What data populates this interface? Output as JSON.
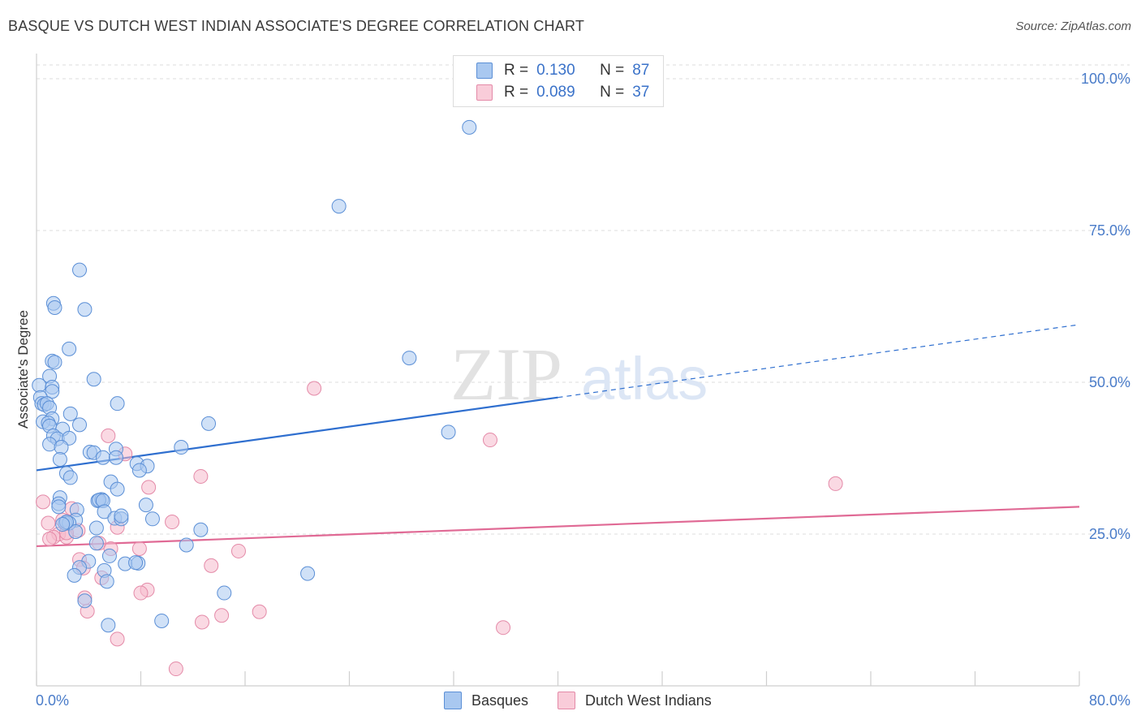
{
  "title": "BASQUE VS DUTCH WEST INDIAN ASSOCIATE'S DEGREE CORRELATION CHART",
  "source": "Source: ZipAtlas.com",
  "legend": {
    "row1": {
      "r_label": "R =",
      "r_value": "0.130",
      "n_label": "N =",
      "n_value": "87"
    },
    "row2": {
      "r_label": "R =",
      "r_value": "0.089",
      "n_label": "N =",
      "n_value": "37"
    }
  },
  "bottom_legend": {
    "series1": "Basques",
    "series2": "Dutch West Indians"
  },
  "colors": {
    "blue_fill": "#a9c8f0",
    "blue_stroke": "#5b8fd6",
    "blue_line": "#2f6fcf",
    "pink_fill": "#f5b9cc",
    "pink_stroke": "#e48aa8",
    "pink_line": "#e06a95",
    "grid": "#dddddd",
    "tick_text": "#4a7cc9"
  },
  "chart_data": {
    "type": "scatter",
    "title": "BASQUE VS DUTCH WEST INDIAN ASSOCIATE'S DEGREE CORRELATION CHART",
    "xlabel": "",
    "ylabel": "Associate's Degree",
    "xlim": [
      0,
      80
    ],
    "ylim": [
      0,
      100
    ],
    "x_tick_labels": [
      "0.0%",
      "80.0%"
    ],
    "y_tick_labels": [
      "25.0%",
      "50.0%",
      "75.0%",
      "100.0%"
    ],
    "y_ticks": [
      25,
      50,
      75,
      100
    ],
    "grid": "horizontal dashed",
    "legend_position": "top-center",
    "watermark": "ZIPatlas",
    "series": [
      {
        "name": "Basques",
        "r": 0.13,
        "n": 87,
        "trend": {
          "x0": 0,
          "y0": 35.5,
          "x1": 40,
          "y1": 47.5,
          "dashed_to_x": 80,
          "dashed_to_y": 59.5
        },
        "points": [
          [
            33.2,
            92.0
          ],
          [
            23.2,
            79.0
          ],
          [
            3.3,
            68.5
          ],
          [
            1.3,
            63.0
          ],
          [
            1.4,
            62.3
          ],
          [
            3.7,
            62.0
          ],
          [
            2.5,
            55.5
          ],
          [
            28.6,
            54.0
          ],
          [
            1.2,
            53.5
          ],
          [
            1.4,
            53.3
          ],
          [
            1.0,
            51.0
          ],
          [
            4.4,
            50.5
          ],
          [
            0.2,
            49.5
          ],
          [
            1.2,
            49.2
          ],
          [
            1.2,
            48.5
          ],
          [
            0.3,
            47.5
          ],
          [
            0.4,
            46.5
          ],
          [
            0.6,
            46.3
          ],
          [
            0.8,
            46.5
          ],
          [
            6.2,
            46.5
          ],
          [
            1.0,
            45.8
          ],
          [
            2.6,
            44.8
          ],
          [
            1.2,
            44.0
          ],
          [
            0.5,
            43.5
          ],
          [
            0.9,
            43.3
          ],
          [
            1.0,
            42.8
          ],
          [
            3.3,
            43.0
          ],
          [
            13.2,
            43.2
          ],
          [
            2.0,
            42.3
          ],
          [
            1.3,
            41.2
          ],
          [
            31.6,
            41.8
          ],
          [
            1.6,
            40.7
          ],
          [
            2.5,
            40.8
          ],
          [
            1.0,
            39.8
          ],
          [
            1.9,
            39.3
          ],
          [
            11.1,
            39.3
          ],
          [
            6.1,
            39.0
          ],
          [
            4.1,
            38.5
          ],
          [
            4.4,
            38.4
          ],
          [
            5.1,
            37.6
          ],
          [
            6.1,
            37.6
          ],
          [
            1.8,
            37.3
          ],
          [
            7.7,
            36.6
          ],
          [
            8.5,
            36.2
          ],
          [
            7.9,
            35.5
          ],
          [
            2.3,
            35.0
          ],
          [
            2.6,
            34.3
          ],
          [
            5.7,
            33.6
          ],
          [
            6.2,
            32.4
          ],
          [
            1.8,
            31.0
          ],
          [
            1.7,
            30.0
          ],
          [
            4.7,
            30.5
          ],
          [
            5.0,
            30.7
          ],
          [
            4.8,
            30.6
          ],
          [
            5.1,
            30.5
          ],
          [
            8.4,
            29.8
          ],
          [
            3.1,
            29.0
          ],
          [
            1.7,
            29.5
          ],
          [
            5.2,
            28.7
          ],
          [
            6.0,
            27.6
          ],
          [
            6.5,
            27.5
          ],
          [
            8.9,
            27.5
          ],
          [
            3.0,
            27.3
          ],
          [
            2.2,
            26.8
          ],
          [
            2.5,
            26.8
          ],
          [
            4.6,
            26.0
          ],
          [
            12.6,
            25.7
          ],
          [
            3.0,
            25.4
          ],
          [
            4.6,
            23.5
          ],
          [
            11.5,
            23.2
          ],
          [
            5.6,
            21.4
          ],
          [
            4.0,
            20.5
          ],
          [
            6.8,
            20.1
          ],
          [
            7.8,
            20.2
          ],
          [
            3.3,
            19.5
          ],
          [
            5.2,
            19.0
          ],
          [
            20.8,
            18.5
          ],
          [
            2.9,
            18.2
          ],
          [
            5.4,
            17.2
          ],
          [
            14.4,
            15.3
          ],
          [
            3.7,
            14.0
          ],
          [
            9.6,
            10.7
          ],
          [
            5.5,
            10.0
          ],
          [
            2.3,
            27.0
          ],
          [
            7.6,
            20.3
          ],
          [
            2.0,
            26.6
          ],
          [
            6.5,
            28.0
          ]
        ]
      },
      {
        "name": "Dutch West Indians",
        "r": 0.089,
        "n": 37,
        "trend": {
          "x0": 0,
          "y0": 23.0,
          "x1": 80,
          "y1": 29.5
        },
        "points": [
          [
            21.3,
            49.0
          ],
          [
            34.8,
            40.5
          ],
          [
            5.5,
            41.2
          ],
          [
            6.8,
            38.2
          ],
          [
            12.6,
            34.5
          ],
          [
            61.3,
            33.3
          ],
          [
            8.6,
            32.7
          ],
          [
            0.5,
            30.3
          ],
          [
            2.7,
            29.2
          ],
          [
            2.0,
            27.3
          ],
          [
            10.4,
            27.0
          ],
          [
            0.9,
            26.8
          ],
          [
            1.7,
            25.0
          ],
          [
            3.2,
            25.6
          ],
          [
            6.2,
            26.1
          ],
          [
            1.3,
            24.5
          ],
          [
            2.3,
            24.5
          ],
          [
            1.0,
            24.2
          ],
          [
            2.3,
            25.2
          ],
          [
            4.8,
            23.5
          ],
          [
            5.7,
            22.6
          ],
          [
            7.9,
            22.6
          ],
          [
            15.5,
            22.2
          ],
          [
            3.3,
            20.8
          ],
          [
            13.4,
            19.8
          ],
          [
            3.6,
            19.4
          ],
          [
            5.0,
            17.8
          ],
          [
            8.5,
            15.8
          ],
          [
            8.0,
            15.3
          ],
          [
            3.7,
            14.5
          ],
          [
            17.1,
            12.2
          ],
          [
            3.9,
            12.3
          ],
          [
            14.2,
            11.6
          ],
          [
            12.7,
            10.5
          ],
          [
            35.8,
            9.6
          ],
          [
            6.2,
            7.7
          ],
          [
            10.7,
            2.8
          ]
        ]
      }
    ]
  }
}
